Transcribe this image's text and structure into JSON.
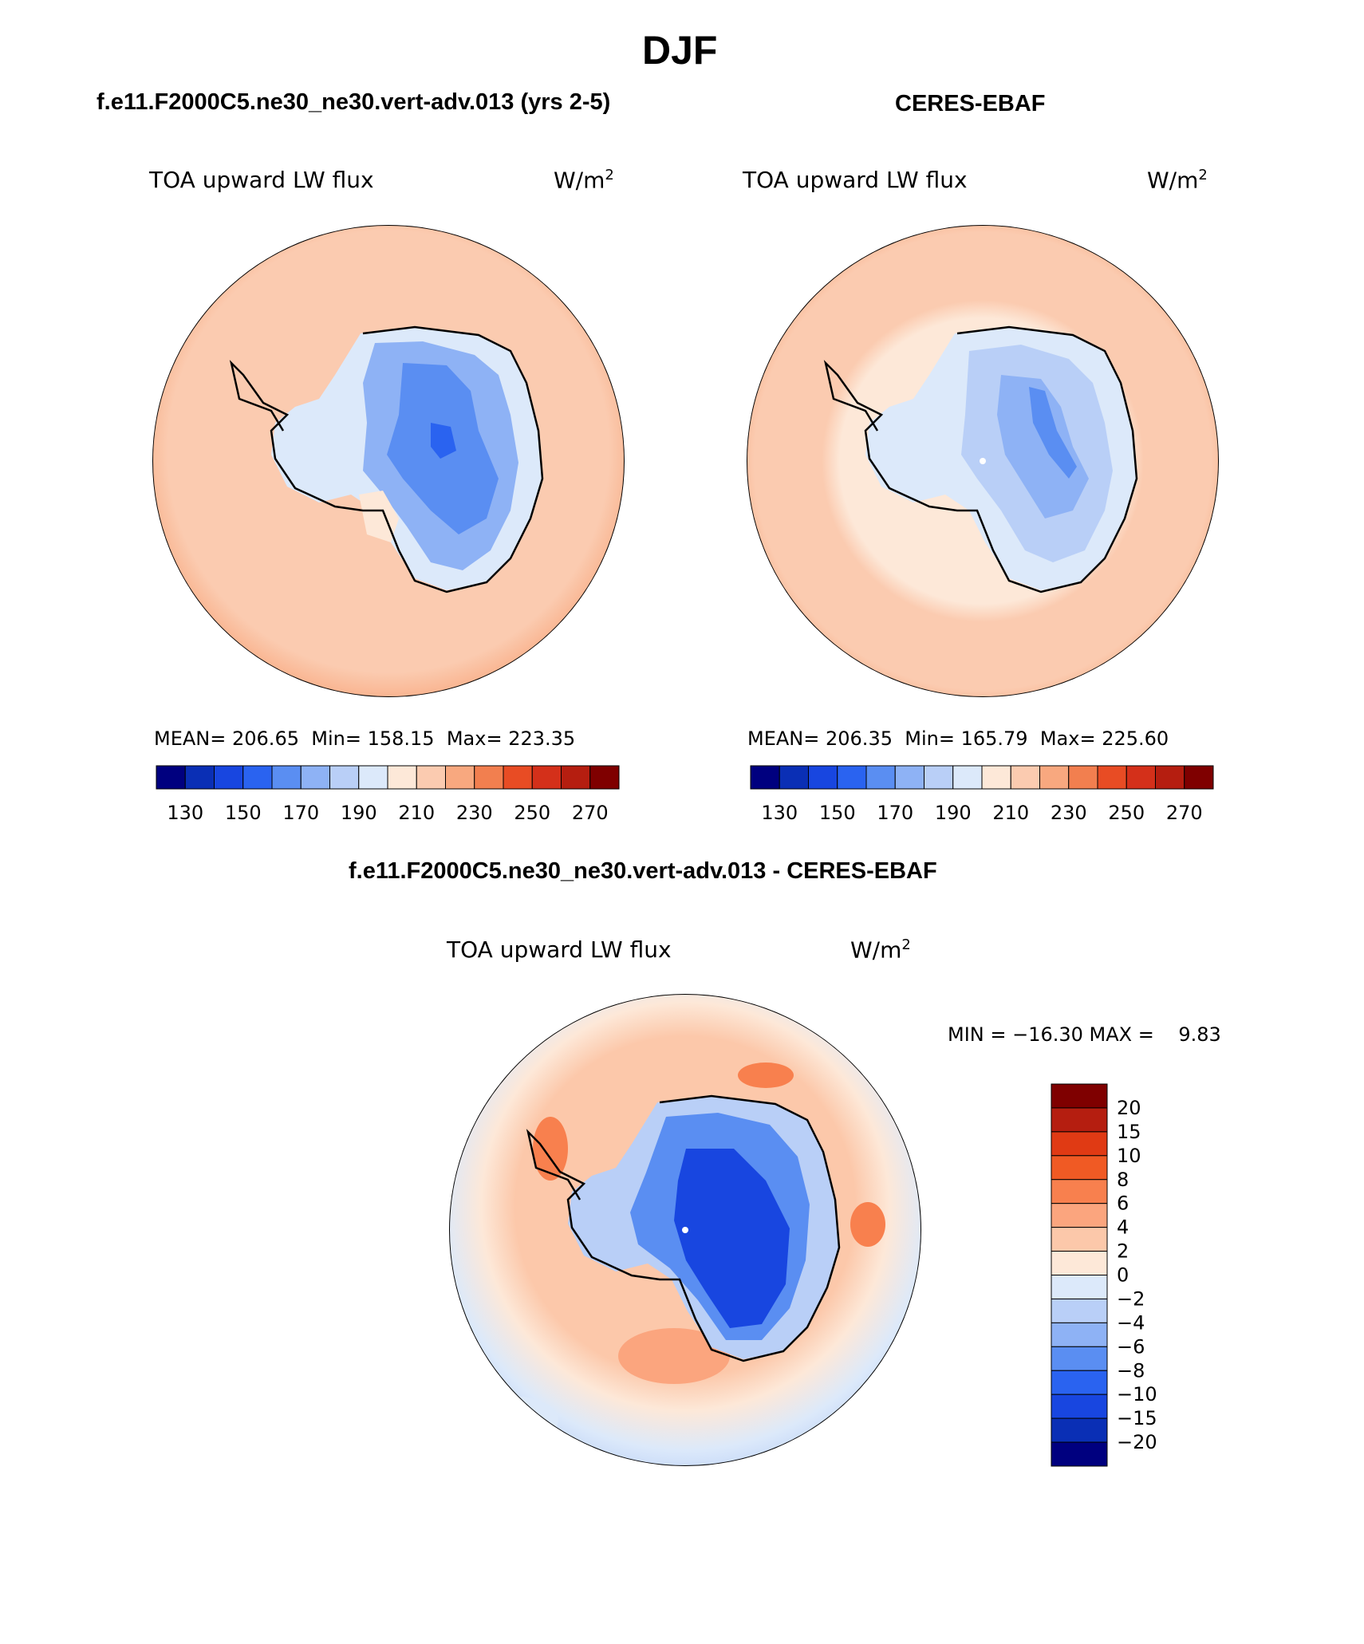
{
  "header": {
    "season": "DJF",
    "left_title": "f.e11.F2000C5.ne30_ne30.vert-adv.013 (yrs 2-5)",
    "right_title": "CERES-EBAF",
    "diff_title": "f.e11.F2000C5.ne30_ne30.vert-adv.013 - CERES-EBAF"
  },
  "panels": {
    "model": {
      "field": "TOA upward LW flux",
      "units": "W/m",
      "units_sup": "2",
      "mean_label": "MEAN=",
      "mean": "206.65",
      "min_label": "Min=",
      "min": "158.15",
      "max_label": "Max=",
      "max": "223.35"
    },
    "obs": {
      "field": "TOA upward LW flux",
      "units": "W/m",
      "units_sup": "2",
      "mean_label": "MEAN=",
      "mean": "206.35",
      "min_label": "Min=",
      "min": "165.79",
      "max_label": "Max=",
      "max": "225.60"
    },
    "diff": {
      "field": "TOA upward LW flux",
      "units": "W/m",
      "units_sup": "2",
      "minmax_text": "MIN = −16.30 MAX =    9.83"
    }
  },
  "colorbars": {
    "absolute": {
      "tick_labels": [
        "130",
        "150",
        "170",
        "190",
        "210",
        "230",
        "250",
        "270"
      ],
      "colors": [
        "#00007f",
        "#0a2fb5",
        "#1846e0",
        "#2a63f0",
        "#5a8ef2",
        "#8eb2f5",
        "#b9cff7",
        "#dce9fa",
        "#fde8d8",
        "#fbcbb0",
        "#f8a87f",
        "#f27f4f",
        "#e84c24",
        "#d4301a",
        "#b51e10",
        "#7f0000"
      ]
    },
    "difference": {
      "tick_labels": [
        "20",
        "15",
        "10",
        "8",
        "6",
        "4",
        "2",
        "0",
        "−2",
        "−4",
        "−6",
        "−8",
        "−10",
        "−15",
        "−20"
      ],
      "colors": [
        "#7f0000",
        "#b51e10",
        "#e03a14",
        "#f05a24",
        "#f8804e",
        "#fba57e",
        "#fcc8aa",
        "#fde8d8",
        "#dce9fa",
        "#b9cff7",
        "#8eb2f5",
        "#5a8ef2",
        "#2a63f0",
        "#1846e0",
        "#0a2fb5",
        "#00007f"
      ]
    }
  },
  "map_colors": {
    "ocean_model": "#fbcbb0",
    "ocean_obs_inner": "#fde8d8",
    "ocean_warm_edge": "#f8a87f",
    "diff_ocean": "#fcc8aa",
    "diff_cool": "#dce9fa",
    "diff_warm": "#f8804e"
  }
}
